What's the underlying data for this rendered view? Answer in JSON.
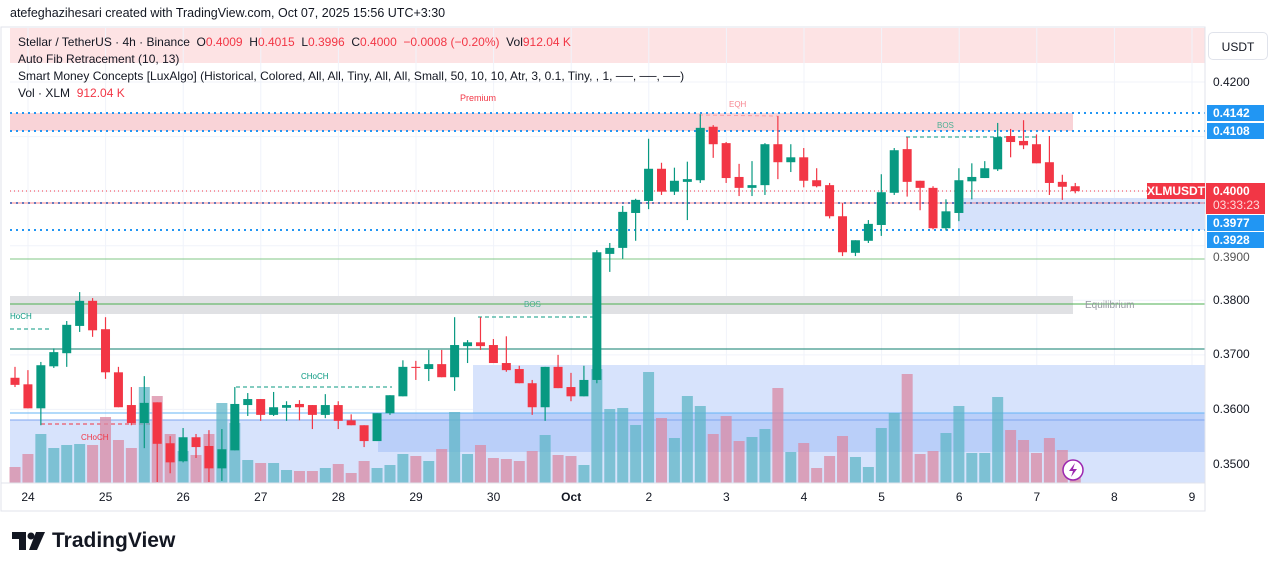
{
  "credit": "atefeghazihesari created with TradingView.com, Oct 07, 2025 15:56 UTC+3:30",
  "legend": {
    "symbol": "Stellar / TetherUS · 4h · Binance",
    "o_label": "O",
    "o": "0.4009",
    "h_label": "H",
    "h": "0.4015",
    "l_label": "L",
    "l": "0.3996",
    "c_label": "C",
    "c": "0.4000",
    "change": "−0.0008 (−0.20%)",
    "vol_label": "Vol",
    "vol": "912.04 K",
    "fib": "Auto Fib Retracement (10, 13)",
    "smc": "Smart Money Concepts [LuxAlgo] (Historical, Colored, All, All, Tiny, All, All, Small, 50, 10, 10, Atr, 3, 0.1, Tiny, , 1, ──, ──, ──)",
    "volume_name": "Vol · XLM",
    "volume_value": "912.04 K"
  },
  "currency_button": "USDT",
  "price_axis": {
    "ticks": [
      "0.4200",
      "0.3800",
      "0.3700",
      "0.3600",
      "0.3500"
    ],
    "hidden_tick": "0.3900",
    "badges": {
      "fib_high": "0.4142",
      "fib_2": "0.4108",
      "symbol": "XLMUSDT",
      "last": "0.4000",
      "countdown": "03:33:23",
      "fib_3": "0.3977",
      "fib_4": "0.3928"
    }
  },
  "time_axis": [
    "24",
    "25",
    "26",
    "27",
    "28",
    "29",
    "30",
    "Oct",
    "2",
    "3",
    "4",
    "5",
    "6",
    "7",
    "8",
    "9"
  ],
  "annotations": {
    "premium": "Premium",
    "equilibrium": "Equilibrium",
    "eqh": "EQH",
    "bos1": "BOS",
    "bos2": "BOS",
    "choch1": "CHoCH",
    "choch2": "CHoCH",
    "choch3": "HoCH"
  },
  "colors": {
    "up": "#089981",
    "down": "#f23645",
    "accent": "#2196f3"
  },
  "footer": {
    "brand": "TradingView"
  },
  "chart_data": {
    "type": "candlestick",
    "symbol": "XLMUSDT",
    "interval": "4h",
    "ylim": [
      0.346,
      0.428
    ],
    "candles": [
      [
        0.3658,
        0.3678,
        0.3641,
        0.3645
      ],
      [
        0.3646,
        0.3672,
        0.3602,
        0.3602
      ],
      [
        0.3602,
        0.3687,
        0.3571,
        0.3681
      ],
      [
        0.3679,
        0.3712,
        0.3676,
        0.3705
      ],
      [
        0.3703,
        0.3762,
        0.3678,
        0.3755
      ],
      [
        0.3753,
        0.3815,
        0.3742,
        0.3799
      ],
      [
        0.3799,
        0.3804,
        0.3733,
        0.3745
      ],
      [
        0.3747,
        0.3769,
        0.3656,
        0.3668
      ],
      [
        0.3668,
        0.3678,
        0.3604,
        0.3604
      ],
      [
        0.3608,
        0.3641,
        0.3571,
        0.3575
      ],
      [
        0.3575,
        0.3661,
        0.3529,
        0.3612
      ],
      [
        0.3613,
        0.3613,
        0.3467,
        0.3537
      ],
      [
        0.3538,
        0.3551,
        0.3483,
        0.3503
      ],
      [
        0.3505,
        0.3566,
        0.3503,
        0.3549
      ],
      [
        0.3549,
        0.3555,
        0.3511,
        0.3531
      ],
      [
        0.3533,
        0.3562,
        0.3467,
        0.3492
      ],
      [
        0.3492,
        0.3564,
        0.3469,
        0.3527
      ],
      [
        0.3525,
        0.3641,
        0.3525,
        0.361
      ],
      [
        0.3608,
        0.363,
        0.3588,
        0.3619
      ],
      [
        0.3619,
        0.3619,
        0.3579,
        0.359
      ],
      [
        0.359,
        0.3632,
        0.3588,
        0.3604
      ],
      [
        0.3603,
        0.3615,
        0.3579,
        0.3608
      ],
      [
        0.361,
        0.3617,
        0.358,
        0.3604
      ],
      [
        0.3608,
        0.3608,
        0.3564,
        0.359
      ],
      [
        0.359,
        0.3628,
        0.3584,
        0.3608
      ],
      [
        0.3608,
        0.3615,
        0.3564,
        0.3579
      ],
      [
        0.358,
        0.3591,
        0.3571,
        0.3571
      ],
      [
        0.3571,
        0.3571,
        0.3531,
        0.3542
      ],
      [
        0.3542,
        0.3593,
        0.3542,
        0.3593
      ],
      [
        0.3593,
        0.3626,
        0.359,
        0.3626
      ],
      [
        0.3624,
        0.369,
        0.3624,
        0.3678
      ],
      [
        0.3678,
        0.3689,
        0.3654,
        0.3676
      ],
      [
        0.3674,
        0.3709,
        0.3652,
        0.3683
      ],
      [
        0.3683,
        0.3709,
        0.3659,
        0.3659
      ],
      [
        0.3659,
        0.3769,
        0.3634,
        0.3718
      ],
      [
        0.3716,
        0.3727,
        0.3685,
        0.3723
      ],
      [
        0.3723,
        0.3769,
        0.3709,
        0.3716
      ],
      [
        0.3718,
        0.3729,
        0.3685,
        0.3685
      ],
      [
        0.3685,
        0.3734,
        0.3669,
        0.3672
      ],
      [
        0.3674,
        0.368,
        0.3648,
        0.3648
      ],
      [
        0.3648,
        0.3654,
        0.359,
        0.3604
      ],
      [
        0.3604,
        0.3678,
        0.3579,
        0.3678
      ],
      [
        0.3678,
        0.37,
        0.3639,
        0.3639
      ],
      [
        0.3641,
        0.3667,
        0.3615,
        0.3624
      ],
      [
        0.3624,
        0.368,
        0.3624,
        0.3654
      ],
      [
        0.3654,
        0.3892,
        0.3648,
        0.3888
      ],
      [
        0.3885,
        0.3905,
        0.3852,
        0.3896
      ],
      [
        0.3896,
        0.3973,
        0.3876,
        0.3962
      ],
      [
        0.396,
        0.3986,
        0.3909,
        0.3984
      ],
      [
        0.3982,
        0.4096,
        0.3967,
        0.4041
      ],
      [
        0.4041,
        0.4052,
        0.3993,
        0.3999
      ],
      [
        0.3999,
        0.4043,
        0.3993,
        0.4019
      ],
      [
        0.4017,
        0.4054,
        0.3947,
        0.4022
      ],
      [
        0.402,
        0.4141,
        0.4015,
        0.4116
      ],
      [
        0.4118,
        0.4121,
        0.4061,
        0.4086
      ],
      [
        0.4088,
        0.409,
        0.4015,
        0.4024
      ],
      [
        0.4026,
        0.405,
        0.3991,
        0.4006
      ],
      [
        0.4006,
        0.4055,
        0.3991,
        0.4011
      ],
      [
        0.4011,
        0.4088,
        0.3993,
        0.4086
      ],
      [
        0.4086,
        0.4138,
        0.4022,
        0.4053
      ],
      [
        0.4053,
        0.4086,
        0.4035,
        0.4062
      ],
      [
        0.4062,
        0.4079,
        0.4007,
        0.4019
      ],
      [
        0.402,
        0.4042,
        0.4007,
        0.4009
      ],
      [
        0.4011,
        0.4015,
        0.395,
        0.3954
      ],
      [
        0.3954,
        0.3978,
        0.3881,
        0.3888
      ],
      [
        0.3887,
        0.391,
        0.3881,
        0.391
      ],
      [
        0.3909,
        0.3947,
        0.3905,
        0.394
      ],
      [
        0.3938,
        0.4031,
        0.3918,
        0.3998
      ],
      [
        0.3997,
        0.4079,
        0.3993,
        0.4075
      ],
      [
        0.4077,
        0.4099,
        0.399,
        0.4017
      ],
      [
        0.4019,
        0.4019,
        0.3965,
        0.4006
      ],
      [
        0.4006,
        0.4009,
        0.393,
        0.3932
      ],
      [
        0.3932,
        0.3985,
        0.3928,
        0.3963
      ],
      [
        0.396,
        0.4042,
        0.3945,
        0.402
      ],
      [
        0.4018,
        0.4051,
        0.3985,
        0.4026
      ],
      [
        0.4024,
        0.4055,
        0.4024,
        0.4042
      ],
      [
        0.404,
        0.4125,
        0.4037,
        0.4099
      ],
      [
        0.4101,
        0.4114,
        0.4062,
        0.409
      ],
      [
        0.4092,
        0.413,
        0.4077,
        0.4084
      ],
      [
        0.4086,
        0.4104,
        0.4051,
        0.4051
      ],
      [
        0.4053,
        0.4101,
        0.3993,
        0.4015
      ],
      [
        0.4017,
        0.403,
        0.3984,
        0.4008
      ],
      [
        0.4009,
        0.4015,
        0.3996,
        0.4
      ]
    ],
    "volume_k": [
      1600,
      2900,
      4900,
      3500,
      3800,
      3900,
      3800,
      6600,
      4300,
      3500,
      9600,
      8700,
      4900,
      3200,
      2800,
      4900,
      8000,
      6000,
      2300,
      2000,
      2000,
      1300,
      1200,
      1200,
      1500,
      1900,
      1000,
      2200,
      1500,
      1800,
      2900,
      2700,
      2200,
      3400,
      7100,
      2900,
      3800,
      2500,
      2400,
      2200,
      3200,
      4800,
      2800,
      2700,
      1800,
      11400,
      7400,
      7500,
      5800,
      11100,
      6500,
      4500,
      8700,
      7700,
      4900,
      6700,
      4200,
      4600,
      5400,
      9500,
      3100,
      4000,
      1500,
      2700,
      4700,
      2600,
      1600,
      5500,
      7000,
      10900,
      2900,
      3200,
      5000,
      7700,
      3000,
      3000,
      8600,
      5300,
      4300,
      3000,
      4500,
      3300,
      912
    ]
  }
}
